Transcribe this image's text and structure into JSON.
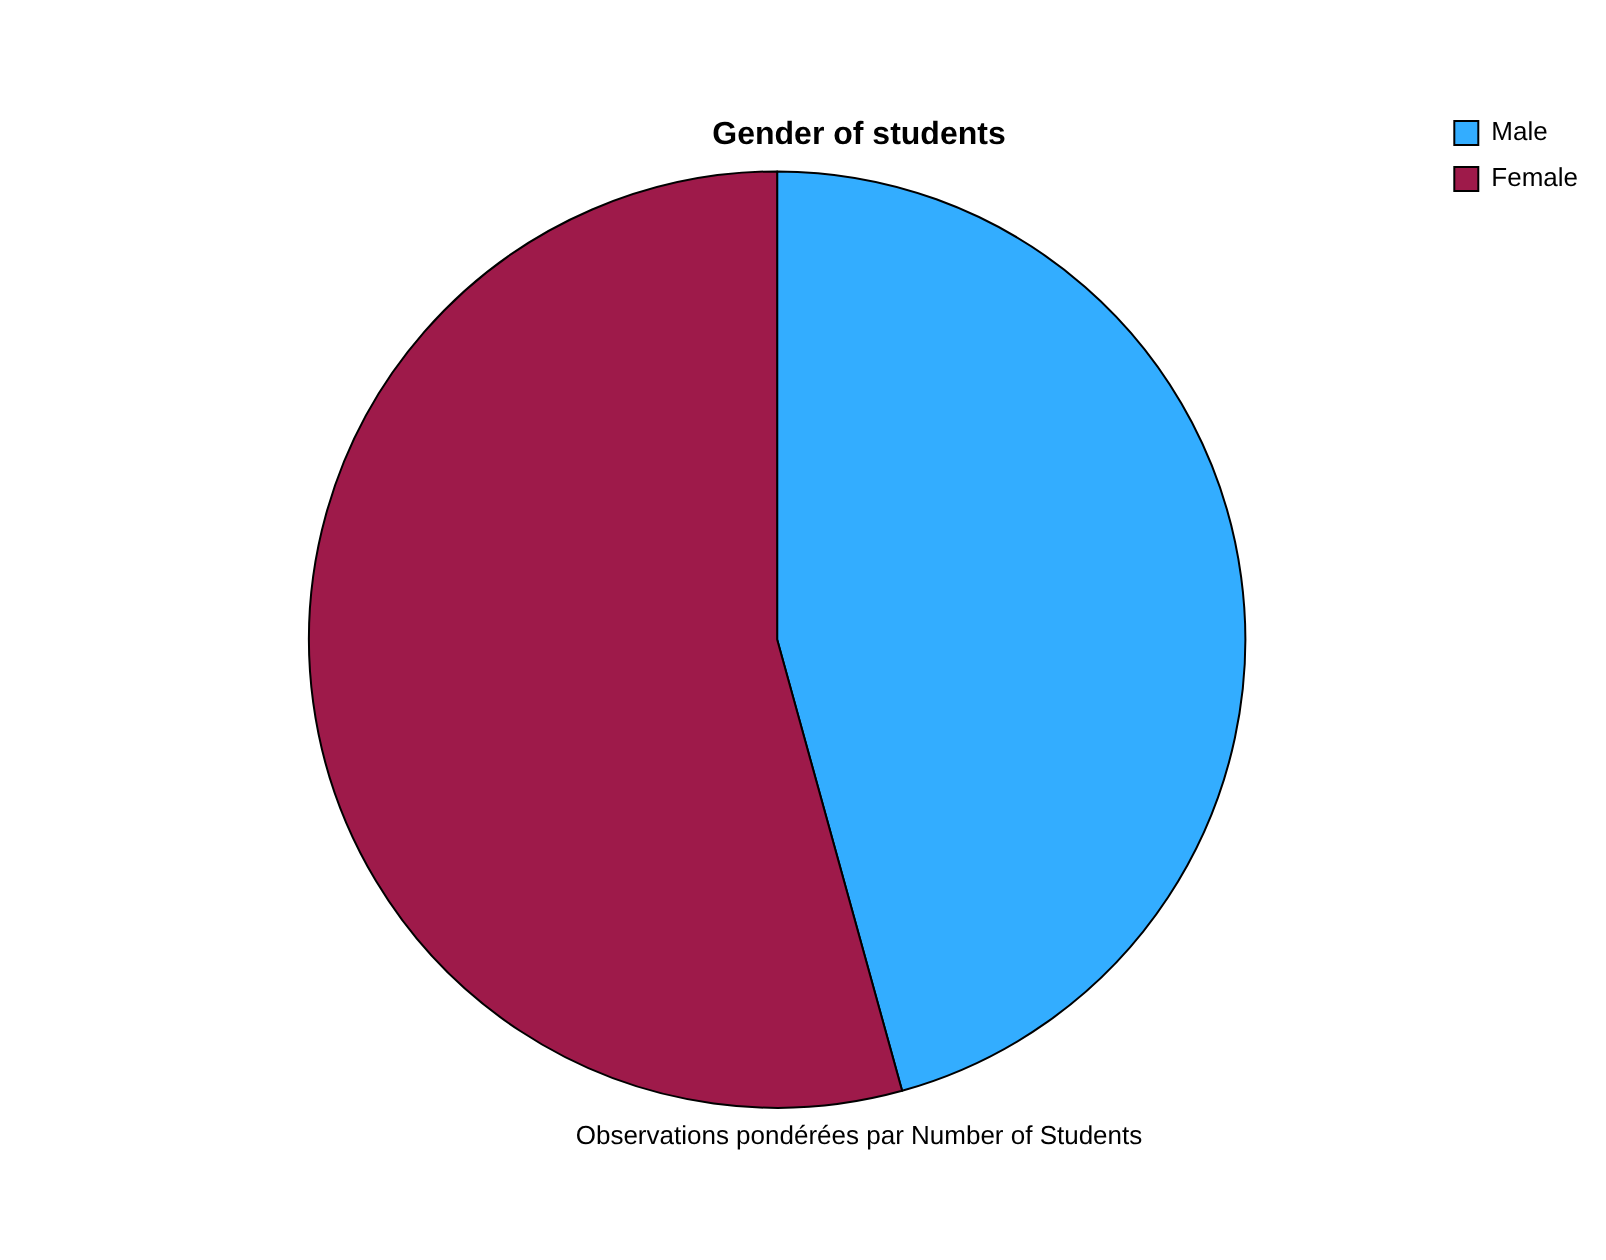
{
  "chart_data": {
    "type": "pie",
    "title": "Gender of students",
    "categories": [
      "Male",
      "Female"
    ],
    "values": [
      45.7,
      54.3
    ],
    "colors": [
      "#33adff",
      "#9e1a4a"
    ],
    "legend": "top right",
    "annotations": [
      "Observations pondérées par Number of Students"
    ]
  }
}
